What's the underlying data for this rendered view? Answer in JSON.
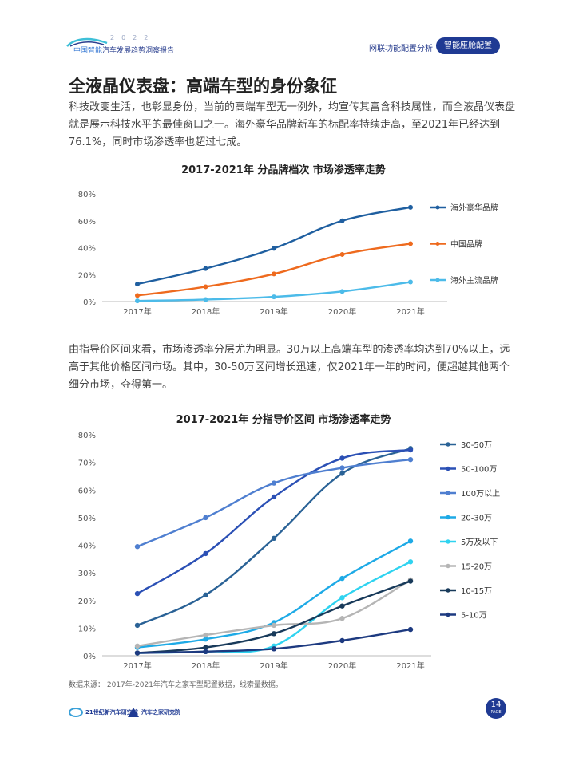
{
  "header": {
    "year": "2022",
    "logo_text_a": "中国智能",
    "logo_text_b": "汽车发展趋势洞察报告",
    "nav": "网联功能配置分析",
    "tab": "智能座舱配置"
  },
  "page": {
    "title": "全液晶仪表盘：高端车型的身份象征",
    "para1": "科技改变生活，也彰显身份，当前的高端车型无一例外，均宣传其富含科技属性，而全液晶仪表盘就是展示科技水平的最佳窗口之一。海外豪华品牌新车的标配率持续走高，至2021年已经达到76.1%，同时市场渗透率也超过七成。",
    "para2": "由指导价区间来看，市场渗透率分层尤为明显。30万以上高端车型的渗透率均达到70%以上，远高于其他价格区间市场。其中，30-50万区间增长迅速，仅2021年一年的时间，便超越其他两个细分市场，夺得第一。",
    "source": "数据来源： 2017年-2021年汽车之家车型配置数据，线索量数据。",
    "footer_logo1": "21世纪新汽车研究院",
    "footer_logo2": "汽车之家研究院",
    "page_number": "14",
    "page_label": "PAGE"
  },
  "chart_data": [
    {
      "type": "line",
      "title": "2017-2021年 分品牌档次 市场渗透率走势",
      "categories": [
        "2017年",
        "2018年",
        "2019年",
        "2020年",
        "2021年"
      ],
      "yticks": [
        "0%",
        "20%",
        "40%",
        "60%",
        "80%"
      ],
      "ylim": [
        0,
        80
      ],
      "legend_position": "right",
      "series": [
        {
          "name": "海外豪华品牌",
          "color": "#1f5fa0",
          "values": [
            13,
            24.5,
            39.5,
            60,
            70
          ]
        },
        {
          "name": "中国品牌",
          "color": "#ee6a1e",
          "values": [
            4.5,
            11,
            20.5,
            35,
            43
          ]
        },
        {
          "name": "海外主流品牌",
          "color": "#4cbbe9",
          "values": [
            0.5,
            1.5,
            3.5,
            7.5,
            14.5
          ]
        }
      ]
    },
    {
      "type": "line",
      "title": "2017-2021年 分指导价区间 市场渗透率走势",
      "categories": [
        "2017年",
        "2018年",
        "2019年",
        "2020年",
        "2021年"
      ],
      "yticks": [
        "0%",
        "10%",
        "20%",
        "30%",
        "40%",
        "50%",
        "60%",
        "70%",
        "80%"
      ],
      "ylim": [
        0,
        80
      ],
      "legend_position": "right",
      "series": [
        {
          "name": "30-50万",
          "color": "#2a6296",
          "values": [
            11,
            22,
            42.5,
            66,
            75
          ]
        },
        {
          "name": "50-100万",
          "color": "#2b50b5",
          "values": [
            22.5,
            37,
            57.5,
            71.5,
            74.5
          ]
        },
        {
          "name": "100万以上",
          "color": "#4f7fd0",
          "values": [
            39.5,
            50,
            62.5,
            68,
            71
          ]
        },
        {
          "name": "20-30万",
          "color": "#1eaae6",
          "values": [
            3,
            6,
            12,
            28,
            41.5
          ]
        },
        {
          "name": "5万及以下",
          "color": "#2fd3f0",
          "values": [
            1,
            1.5,
            3.5,
            21,
            34
          ]
        },
        {
          "name": "15-20万",
          "color": "#b5b5b5",
          "values": [
            3.5,
            7.5,
            11,
            13.5,
            27.5
          ]
        },
        {
          "name": "10-15万",
          "color": "#183a5a",
          "values": [
            1,
            3,
            8,
            18,
            27
          ]
        },
        {
          "name": "5-10万",
          "color": "#1d3a80",
          "values": [
            1,
            1.5,
            2.5,
            5.5,
            9.5
          ]
        }
      ]
    }
  ]
}
